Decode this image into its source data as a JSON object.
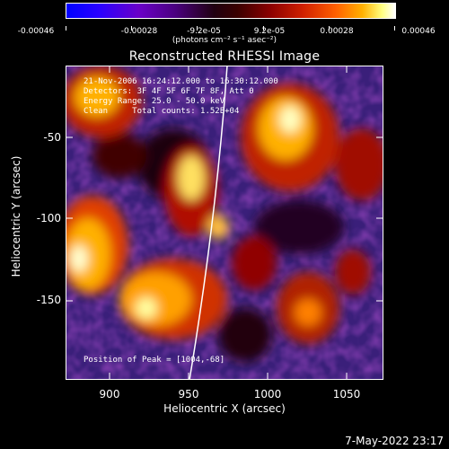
{
  "colorbar": {
    "tick_labels": [
      "-0.00046",
      "-0.00028",
      "-9.2e-05",
      "9.2e-05",
      "0.00028",
      "0.00046"
    ],
    "units": "(photons cm⁻² s⁻¹ asec⁻²)"
  },
  "title": "Reconstructed RHESSI Image",
  "info": {
    "time": "21-Nov-2006 16:24:12.000 to 16:30:12.000",
    "detectors": "Detectors: 3F 4F 5F 6F 7F 8F, Att 0",
    "energy": "Energy Range: 25.0 - 50.0 keV",
    "clean": "Clean     Total counts: 1.52E+04"
  },
  "peak": "Position of Peak = [1004,-68]",
  "axes": {
    "xlabel": "Heliocentric X (arcsec)",
    "ylabel": "Heliocentric Y (arcsec)",
    "xticks": [
      "900",
      "950",
      "1000",
      "1050"
    ],
    "yticks": [
      "-50",
      "-100",
      "-150"
    ]
  },
  "timestamp": "7-May-2022 23:17",
  "colors": {
    "accent": "#ffffff"
  }
}
